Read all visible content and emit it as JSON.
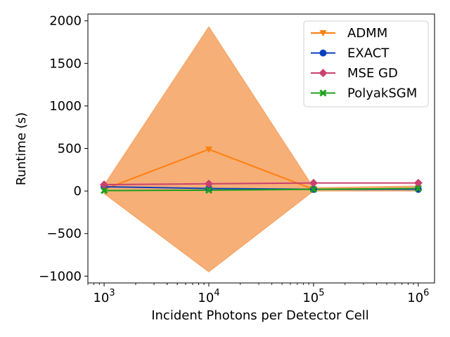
{
  "chart_data": {
    "type": "line",
    "title": "",
    "xlabel": "Incident Photons per Detector Cell",
    "ylabel": "Runtime (s)",
    "xscale": "log",
    "x": [
      1000,
      10000,
      100000,
      1000000
    ],
    "x_tick_labels": [
      {
        "base": "10",
        "exp": "3"
      },
      {
        "base": "10",
        "exp": "4"
      },
      {
        "base": "10",
        "exp": "5"
      },
      {
        "base": "10",
        "exp": "6"
      }
    ],
    "xlim": [
      700,
      1430000
    ],
    "ylim": [
      -1080,
      2080
    ],
    "y_ticks": [
      -1000,
      -500,
      0,
      500,
      1000,
      1500,
      2000
    ],
    "y_tick_labels": [
      "−1000",
      "−500",
      "0",
      "500",
      "1000",
      "1500",
      "2000"
    ],
    "grid": false,
    "legend_position": "top-right",
    "series": [
      {
        "name": "ADMM",
        "color": "#ff7f0e",
        "marker": "triangle-down",
        "values": [
          20,
          490,
          20,
          30
        ],
        "band": {
          "color": "#f5a15f",
          "lower": [
            -30,
            -950,
            0,
            0
          ],
          "upper": [
            70,
            1930,
            40,
            60
          ]
        }
      },
      {
        "name": "EXACT",
        "color": "#0a3fbf",
        "marker": "circle",
        "values": [
          50,
          30,
          20,
          20
        ]
      },
      {
        "name": "MSE GD",
        "color": "#c9406f",
        "marker": "diamond",
        "values": [
          75,
          85,
          95,
          95
        ]
      },
      {
        "name": "PolyakSGM",
        "color": "#1ca11c",
        "marker": "x",
        "values": [
          5,
          10,
          20,
          30
        ]
      }
    ]
  }
}
